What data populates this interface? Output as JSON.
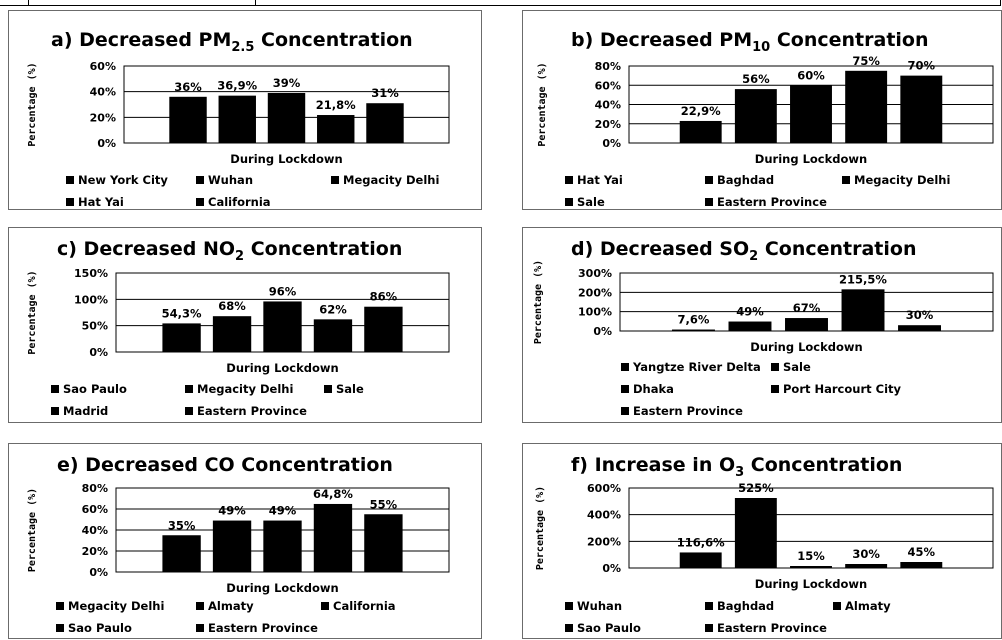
{
  "chart_data": [
    {
      "type": "bar",
      "title": "a)  Decreased PM",
      "title_subscript": "2.5",
      "title_suffix": " Concentration",
      "xlabel": "During Lockdown",
      "ylabel": "Percentage (%)",
      "ylim": [
        0,
        60
      ],
      "yticks": [
        "0%",
        "20%",
        "40%",
        "60%"
      ],
      "grid": true,
      "legend_position": "bottom",
      "series": [
        {
          "name": "New York City",
          "value": 36,
          "label": "36%"
        },
        {
          "name": "Wuhan",
          "value": 36.9,
          "label": "36,9%"
        },
        {
          "name": "Megacity Delhi",
          "value": 39,
          "label": "39%"
        },
        {
          "name": "Hat Yai",
          "value": 21.8,
          "label": "21,8%"
        },
        {
          "name": "California",
          "value": 31,
          "label": "31%"
        }
      ]
    },
    {
      "type": "bar",
      "title": "b)   Decreased PM",
      "title_subscript": "10",
      "title_suffix": " Concentration",
      "xlabel": "During Lockdown",
      "ylabel": "Percentage (%)",
      "ylim": [
        0,
        80
      ],
      "yticks": [
        "0%",
        "20%",
        "40%",
        "60%",
        "80%"
      ],
      "grid": true,
      "legend_position": "bottom",
      "series": [
        {
          "name": "Hat Yai",
          "value": 22.9,
          "label": "22,9%"
        },
        {
          "name": "Baghdad",
          "value": 56,
          "label": "56%"
        },
        {
          "name": "Megacity Delhi",
          "value": 60,
          "label": "60%"
        },
        {
          "name": "Sale",
          "value": 75,
          "label": "75%"
        },
        {
          "name": "Eastern Province",
          "value": 70,
          "label": "70%"
        }
      ]
    },
    {
      "type": "bar",
      "title": "c) Decreased NO",
      "title_subscript": "2",
      "title_suffix": " Concentration",
      "xlabel": "During Lockdown",
      "ylabel": "Percentage (%)",
      "ylim": [
        0,
        150
      ],
      "yticks": [
        "0%",
        "50%",
        "100%",
        "150%"
      ],
      "grid": true,
      "legend_position": "bottom",
      "series": [
        {
          "name": "Sao Paulo",
          "value": 54.3,
          "label": "54,3%"
        },
        {
          "name": "Megacity Delhi",
          "value": 68,
          "label": "68%"
        },
        {
          "name": "Sale",
          "value": 96,
          "label": "96%"
        },
        {
          "name": "Madrid",
          "value": 62,
          "label": "62%"
        },
        {
          "name": "Eastern Province",
          "value": 86,
          "label": "86%"
        }
      ]
    },
    {
      "type": "bar",
      "title": "d)  Decreased SO",
      "title_subscript": "2",
      "title_suffix": " Concentration",
      "xlabel": "During Lockdown",
      "ylabel": "Percentage (%)",
      "ylim": [
        0,
        300
      ],
      "yticks": [
        "0%",
        "100%",
        "200%",
        "300%"
      ],
      "grid": true,
      "legend_position": "bottom",
      "series": [
        {
          "name": "Yangtze River Delta",
          "value": 7.6,
          "label": "7,6%"
        },
        {
          "name": "Sale",
          "value": 49,
          "label": "49%"
        },
        {
          "name": "Dhaka",
          "value": 67,
          "label": "67%"
        },
        {
          "name": "Port Harcourt City",
          "value": 215.5,
          "label": "215,5%"
        },
        {
          "name": "Eastern Province",
          "value": 30,
          "label": "30%"
        }
      ]
    },
    {
      "type": "bar",
      "title": "e)  Decreased CO Concentration",
      "title_subscript": "",
      "title_suffix": "",
      "xlabel": "During Lockdown",
      "ylabel": "Percentage (%)",
      "ylim": [
        0,
        80
      ],
      "yticks": [
        "0%",
        "20%",
        "40%",
        "60%",
        "80%"
      ],
      "grid": true,
      "legend_position": "bottom",
      "series": [
        {
          "name": "Megacity Delhi",
          "value": 35,
          "label": "35%"
        },
        {
          "name": "Almaty",
          "value": 49,
          "label": "49%"
        },
        {
          "name": "California",
          "value": 49,
          "label": "49%"
        },
        {
          "name": "Sao Paulo",
          "value": 64.8,
          "label": "64,8%"
        },
        {
          "name": "Eastern Province",
          "value": 55,
          "label": "55%"
        }
      ]
    },
    {
      "type": "bar",
      "title": "f)  Increase in O",
      "title_subscript": "3",
      "title_suffix": " Concentration",
      "xlabel": "During Lockdown",
      "ylabel": "Percentage (%)",
      "ylim": [
        0,
        600
      ],
      "yticks": [
        "0%",
        "200%",
        "400%",
        "600%"
      ],
      "grid": true,
      "legend_position": "bottom",
      "series": [
        {
          "name": "Wuhan",
          "value": 116.6,
          "label": "116,6%"
        },
        {
          "name": "Baghdad",
          "value": 525,
          "label": "525%"
        },
        {
          "name": "Almaty",
          "value": 15,
          "label": "15%"
        },
        {
          "name": "Sao Paulo",
          "value": 30,
          "label": "30%"
        },
        {
          "name": "Eastern Province",
          "value": 45,
          "label": "45%"
        }
      ]
    }
  ],
  "colors": {
    "bar": "#000000",
    "grid": "#000000",
    "panel_border": "#6b6b6b",
    "background": "#ffffff"
  }
}
